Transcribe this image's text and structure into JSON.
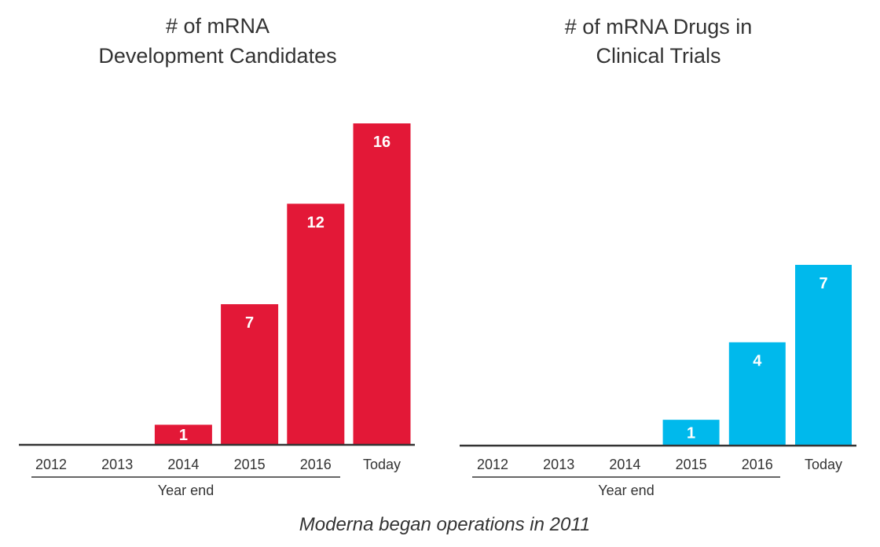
{
  "colors": {
    "red": "#e31837",
    "blue": "#00b9ec",
    "axis": "#333333",
    "text": "#333333"
  },
  "footnote": "Moderna began operations in 2011",
  "chart_data": [
    {
      "type": "bar",
      "title": [
        "# of mRNA",
        "Development Candidates"
      ],
      "categories": [
        "2012",
        "2013",
        "2014",
        "2015",
        "2016",
        "Today"
      ],
      "values": [
        0,
        0,
        1,
        7,
        12,
        16
      ],
      "xlabel": "Year end",
      "xlabel_group": [
        "2012",
        "2013",
        "2014",
        "2015",
        "2016"
      ],
      "ylabel": "",
      "ylim": [
        0,
        16
      ],
      "grid": false,
      "color": "#e31837"
    },
    {
      "type": "bar",
      "title": [
        "# of mRNA Drugs in",
        "Clinical Trials"
      ],
      "categories": [
        "2012",
        "2013",
        "2014",
        "2015",
        "2016",
        "Today"
      ],
      "values": [
        0,
        0,
        0,
        1,
        4,
        7
      ],
      "xlabel": "Year end",
      "xlabel_group": [
        "2012",
        "2013",
        "2014",
        "2015",
        "2016"
      ],
      "ylabel": "",
      "ylim": [
        0,
        7
      ],
      "grid": false,
      "color": "#00b9ec"
    }
  ]
}
